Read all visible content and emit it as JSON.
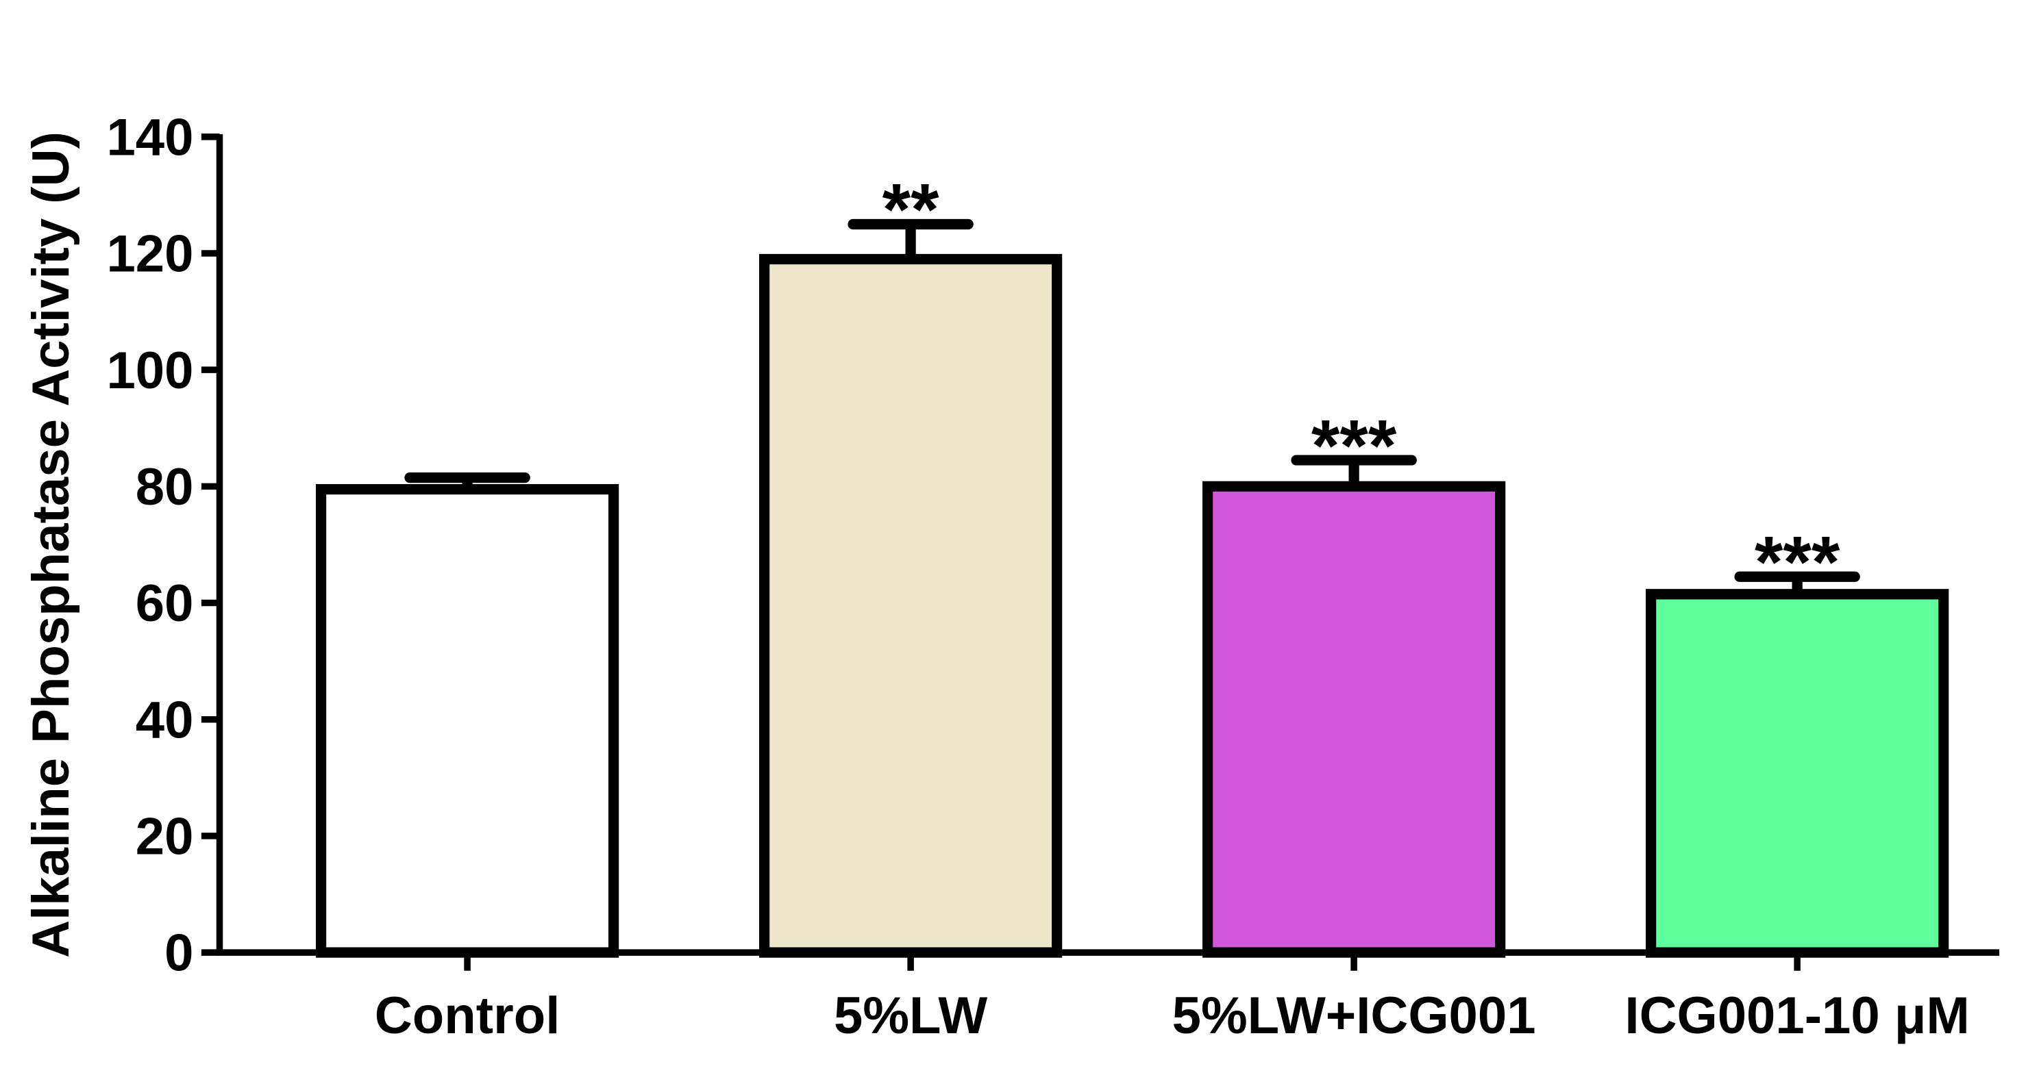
{
  "chart_data": {
    "type": "bar",
    "y_label": "Alkaline Phosphatase Activity (U)",
    "categories": [
      "Control",
      "5%LW",
      "5%LW+ICG001",
      "ICG001-10 μM"
    ],
    "values": [
      79.5,
      119,
      80,
      61.5
    ],
    "errors": [
      2,
      6,
      4.5,
      3
    ],
    "colors": [
      "#ffffff",
      "#ede5c9",
      "#d357db",
      "#5cff9b"
    ],
    "annotations": [
      {
        "category": "5%LW",
        "text": "**"
      },
      {
        "category": "5%LW+ICG001",
        "text": "***"
      },
      {
        "category": "ICG001-10 μM",
        "text": "***"
      }
    ],
    "ylim": [
      0,
      140
    ],
    "yticks": [
      0,
      20,
      40,
      60,
      80,
      100,
      120,
      140
    ],
    "grid": false
  }
}
